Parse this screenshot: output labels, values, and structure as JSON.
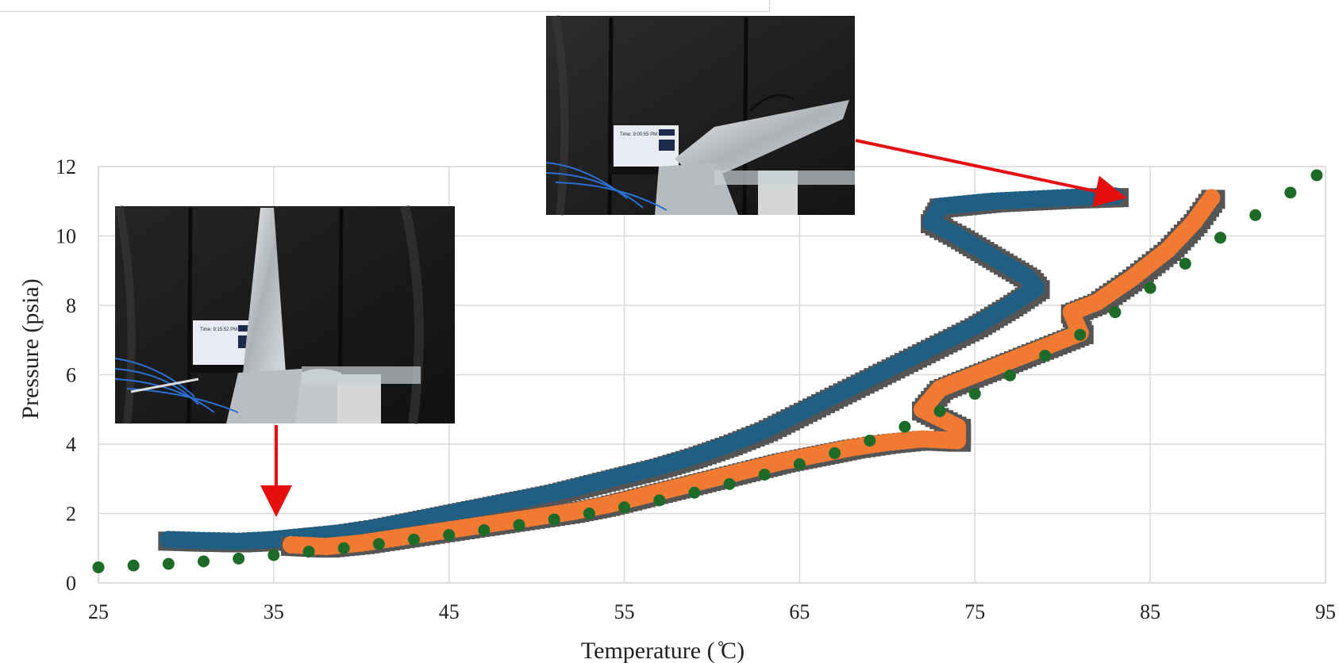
{
  "chart_data": {
    "type": "scatter",
    "title": "",
    "xlabel": "Temperature ( ̊C)",
    "ylabel": "Pressure (psia)",
    "xlim": [
      25,
      95
    ],
    "ylim": [
      0,
      12
    ],
    "x_ticks": [
      25,
      35,
      45,
      55,
      65,
      75,
      85,
      95
    ],
    "y_ticks": [
      0,
      2,
      4,
      6,
      8,
      10,
      12
    ],
    "grid": true,
    "legend": "none",
    "series": [
      {
        "color": "#1f5f84",
        "marker": "thick trace with grey shadow",
        "points": [
          [
            29,
            1.25
          ],
          [
            31,
            1.22
          ],
          [
            33,
            1.2
          ],
          [
            35,
            1.25
          ],
          [
            37,
            1.35
          ],
          [
            39,
            1.45
          ],
          [
            41,
            1.6
          ],
          [
            43,
            1.8
          ],
          [
            45,
            2.0
          ],
          [
            47,
            2.2
          ],
          [
            49,
            2.4
          ],
          [
            51,
            2.6
          ],
          [
            53,
            2.85
          ],
          [
            55,
            3.1
          ],
          [
            57,
            3.35
          ],
          [
            59,
            3.65
          ],
          [
            61,
            4.0
          ],
          [
            63,
            4.4
          ],
          [
            65,
            4.9
          ],
          [
            67,
            5.4
          ],
          [
            69,
            5.9
          ],
          [
            71,
            6.4
          ],
          [
            73,
            6.9
          ],
          [
            75,
            7.4
          ],
          [
            77,
            8.0
          ],
          [
            78.5,
            8.5
          ],
          [
            78,
            8.8
          ],
          [
            76,
            9.4
          ],
          [
            74,
            10.0
          ],
          [
            72.5,
            10.4
          ],
          [
            73,
            10.85
          ],
          [
            76,
            11.0
          ],
          [
            80,
            11.1
          ],
          [
            83,
            11.15
          ]
        ]
      },
      {
        "color": "#f07a32",
        "marker": "thick trace with grey shadow",
        "points": [
          [
            36,
            1.1
          ],
          [
            38,
            1.05
          ],
          [
            40,
            1.15
          ],
          [
            42,
            1.3
          ],
          [
            44,
            1.45
          ],
          [
            46,
            1.6
          ],
          [
            48,
            1.75
          ],
          [
            50,
            1.9
          ],
          [
            52,
            2.05
          ],
          [
            54,
            2.25
          ],
          [
            56,
            2.5
          ],
          [
            58,
            2.75
          ],
          [
            60,
            3.0
          ],
          [
            62,
            3.25
          ],
          [
            64,
            3.5
          ],
          [
            66,
            3.7
          ],
          [
            68,
            3.9
          ],
          [
            70,
            4.05
          ],
          [
            72,
            4.15
          ],
          [
            74,
            4.1
          ],
          [
            74,
            4.5
          ],
          [
            72,
            5.0
          ],
          [
            73,
            5.6
          ],
          [
            75,
            6.0
          ],
          [
            77,
            6.4
          ],
          [
            79,
            6.8
          ],
          [
            81,
            7.2
          ],
          [
            80.5,
            7.8
          ],
          [
            82,
            8.1
          ],
          [
            84,
            8.8
          ],
          [
            86,
            9.6
          ],
          [
            87.5,
            10.4
          ],
          [
            88.5,
            11.1
          ]
        ]
      },
      {
        "color": "#1e6b29",
        "marker": "dots",
        "points": [
          [
            25,
            0.45
          ],
          [
            27,
            0.5
          ],
          [
            29,
            0.55
          ],
          [
            31,
            0.62
          ],
          [
            33,
            0.7
          ],
          [
            35,
            0.8
          ],
          [
            37,
            0.9
          ],
          [
            39,
            1.0
          ],
          [
            41,
            1.12
          ],
          [
            43,
            1.25
          ],
          [
            45,
            1.38
          ],
          [
            47,
            1.52
          ],
          [
            49,
            1.67
          ],
          [
            51,
            1.83
          ],
          [
            53,
            2.0
          ],
          [
            55,
            2.18
          ],
          [
            57,
            2.38
          ],
          [
            59,
            2.6
          ],
          [
            61,
            2.85
          ],
          [
            63,
            3.12
          ],
          [
            65,
            3.42
          ],
          [
            67,
            3.74
          ],
          [
            69,
            4.1
          ],
          [
            71,
            4.5
          ],
          [
            73,
            4.95
          ],
          [
            75,
            5.45
          ],
          [
            77,
            5.98
          ],
          [
            79,
            6.55
          ],
          [
            81,
            7.15
          ],
          [
            83,
            7.8
          ],
          [
            85,
            8.5
          ],
          [
            87,
            9.2
          ],
          [
            89,
            9.95
          ],
          [
            91,
            10.6
          ],
          [
            93,
            11.25
          ],
          [
            94.5,
            11.75
          ]
        ]
      }
    ]
  },
  "photos": [
    {
      "name": "vertical-wing-photo",
      "screen_text": "Time: 9:15:52 PM"
    },
    {
      "name": "angled-wing-photo",
      "screen_text": "Time: 9:00:55 PM"
    }
  ]
}
